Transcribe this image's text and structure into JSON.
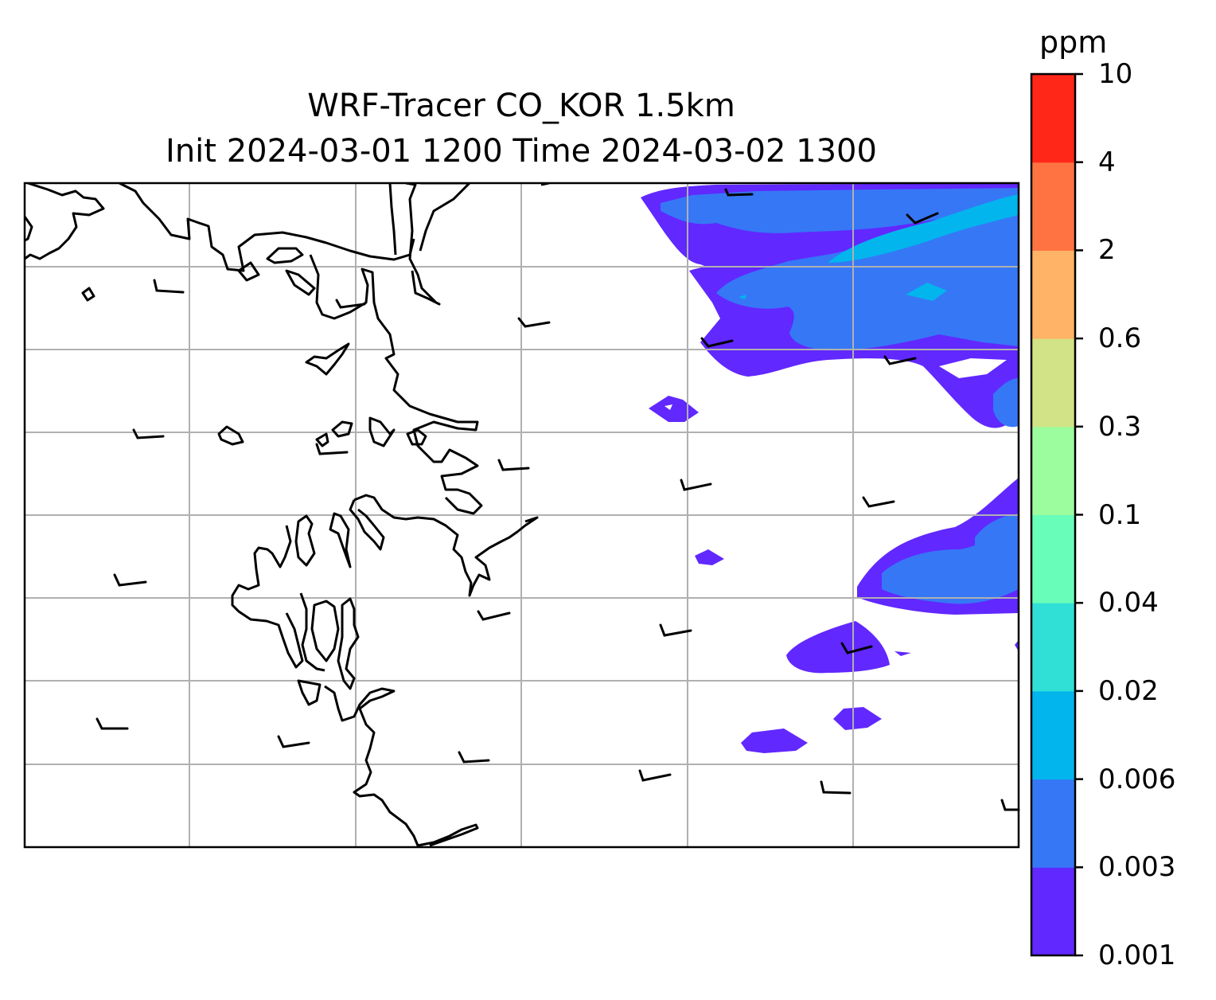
{
  "title": {
    "line1": "WRF-Tracer CO_KOR 1.5km",
    "line2": "Init 2024-03-01 1200 Time 2024-03-02 1300"
  },
  "colorbar": {
    "unit": "ppm",
    "levels": [
      "0.001",
      "0.003",
      "0.006",
      "0.02",
      "0.04",
      "0.1",
      "0.3",
      "0.6",
      "2",
      "4",
      "10"
    ],
    "colors": [
      "#6128ff",
      "#3677f6",
      "#02b5ed",
      "#30dfd6",
      "#68fdb9",
      "#9cfd9e",
      "#d1e386",
      "#ffb366",
      "#ff7242",
      "#ff2718"
    ]
  },
  "map": {
    "gridline_color": "#b0b0b0",
    "coastline_color": "#000000"
  }
}
